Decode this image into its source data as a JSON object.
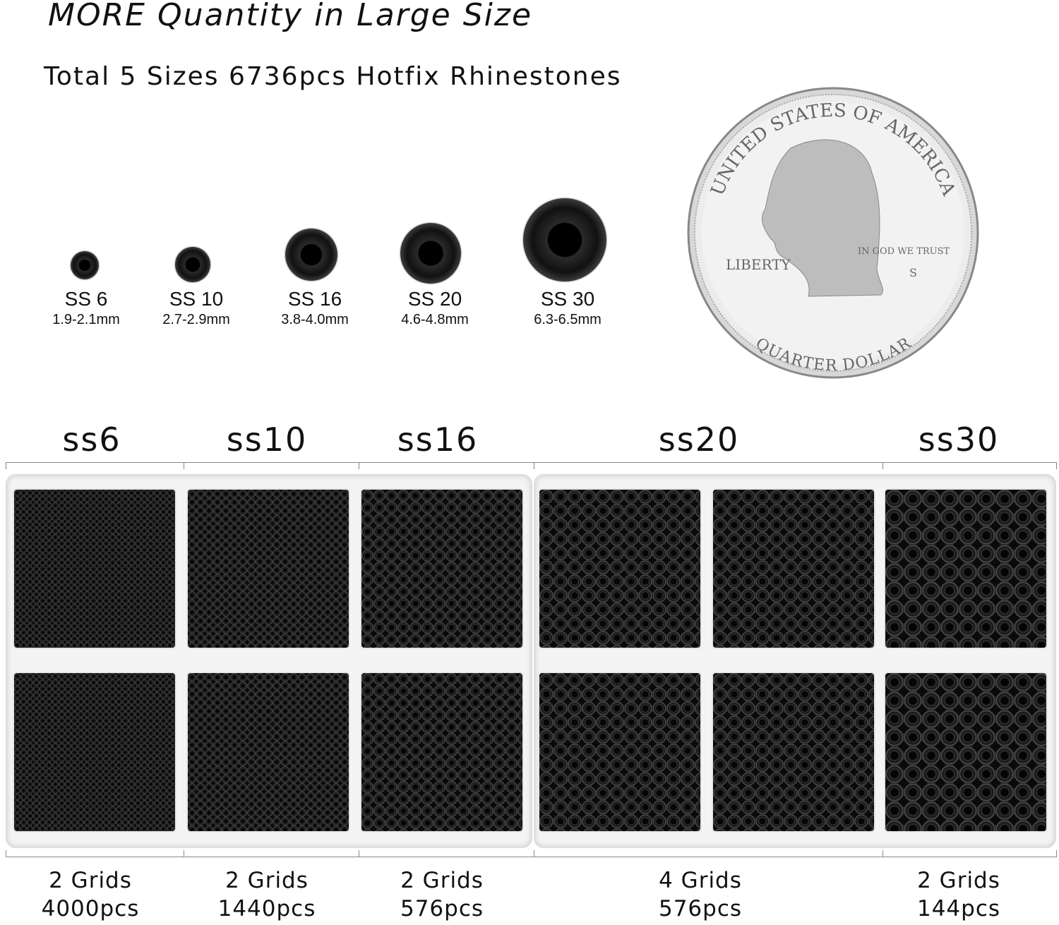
{
  "header": {
    "title": "MORE Quantity in Large Size",
    "subtitle": "Total 5 Sizes 6736pcs Hotfix Rhinestones"
  },
  "sizes": [
    {
      "name": "SS 6",
      "mm": "1.9-2.1mm"
    },
    {
      "name": "SS 10",
      "mm": "2.7-2.9mm"
    },
    {
      "name": "SS 16",
      "mm": "3.8-4.0mm"
    },
    {
      "name": "SS 20",
      "mm": "4.6-4.8mm"
    },
    {
      "name": "SS 30",
      "mm": "6.3-6.5mm"
    }
  ],
  "coin": {
    "top": "UNITED STATES OF AMERICA",
    "motto": "IN GOD WE TRUST",
    "liberty": "LIBERTY",
    "mint": "S",
    "bottom": "QUARTER DOLLAR"
  },
  "sections": [
    {
      "label": "ss6",
      "grids": "2 Grids",
      "count": "4000pcs"
    },
    {
      "label": "ss10",
      "grids": "2 Grids",
      "count": "1440pcs"
    },
    {
      "label": "ss16",
      "grids": "2 Grids",
      "count": "576pcs"
    },
    {
      "label": "ss20",
      "grids": "4 Grids",
      "count": "576pcs"
    },
    {
      "label": "ss30",
      "grids": "2 Grids",
      "count": "144pcs"
    }
  ],
  "colors": {
    "stone": "#111111",
    "tray": "#f4f4f4"
  }
}
